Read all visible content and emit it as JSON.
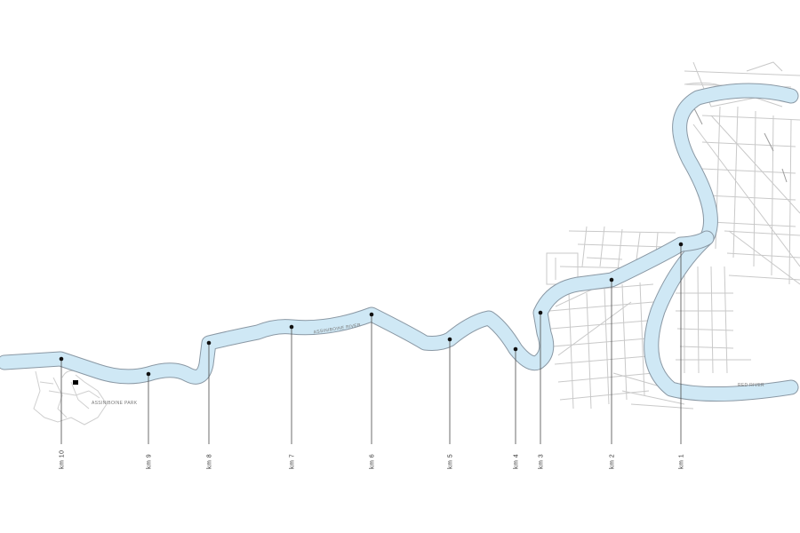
{
  "labels": {
    "assiniboine_river": "ASSINIBOINE RIVER",
    "red_river": "RED RIVER",
    "assiniboine_park": "ASSINIBOINE PARK"
  },
  "markers": [
    {
      "label": "km 10"
    },
    {
      "label": "km 9"
    },
    {
      "label": "km 8"
    },
    {
      "label": "km 7"
    },
    {
      "label": "km 6"
    },
    {
      "label": "km 5"
    },
    {
      "label": "km 4"
    },
    {
      "label": "km 3"
    },
    {
      "label": "km 2"
    },
    {
      "label": "km 1"
    }
  ],
  "colors": {
    "water": "#cfe8f5",
    "river_edge": "#8a98a4",
    "streets": "#c9c9c9",
    "marker": "#111111"
  }
}
